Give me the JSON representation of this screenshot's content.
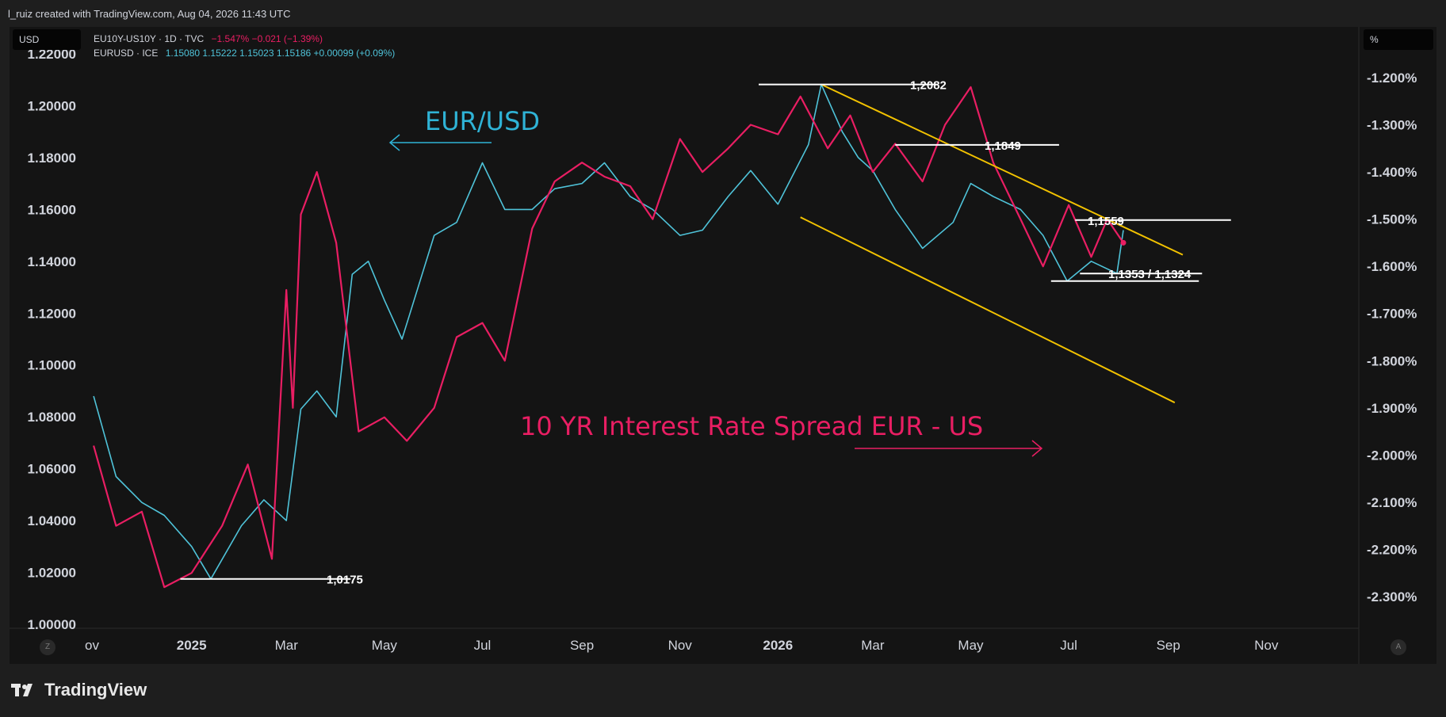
{
  "header": {
    "credit": "l_ruiz created with TradingView.com, Aug 04, 2026 11:43 UTC"
  },
  "left_axis_unit": "USD",
  "right_axis_unit": "%",
  "legend": {
    "spread": {
      "symbol": "EU10Y-US10Y · 1D · TVC",
      "values": "−1.547%  −0.021 (−1.39%)",
      "color": "#e91e63"
    },
    "eurusd": {
      "symbol": "EURUSD · ICE",
      "values": "1.15080  1.15222  1.15023  1.15186  +0.00099 (+0.09%)",
      "color": "#4fc3d9"
    }
  },
  "annotations": {
    "eurusd_label": "EUR/USD",
    "spread_label": "10 YR Interest Rate Spread EUR - US",
    "levels": [
      {
        "text": "1,2082",
        "value": 1.2082
      },
      {
        "text": "1,1849",
        "value": 1.1849
      },
      {
        "text": "1,1559",
        "value": 1.1559
      },
      {
        "text": "1,1353 / 1,1324",
        "value": 1.1353
      },
      {
        "text": "1,0175",
        "value": 1.0175
      }
    ]
  },
  "corner_buttons": {
    "left": "Z",
    "right": "A"
  },
  "footer": {
    "brand": "TradingView"
  },
  "chart_data": {
    "type": "line",
    "x_axis": {
      "ticks": [
        "ov",
        "2025",
        "Mar",
        "May",
        "Jul",
        "Sep",
        "Nov",
        "2026",
        "Mar",
        "May",
        "Jul",
        "Sep",
        "Nov"
      ],
      "bold": [
        "2025",
        "2026"
      ]
    },
    "left_axis": {
      "ylim": [
        1.0,
        1.22
      ],
      "ticks": [
        "1.00000",
        "1.02000",
        "1.04000",
        "1.06000",
        "1.08000",
        "1.10000",
        "1.12000",
        "1.14000",
        "1.16000",
        "1.18000",
        "1.20000",
        "1.22000"
      ]
    },
    "right_axis": {
      "ylim": [
        -2.3,
        -1.2
      ],
      "ticks": [
        "-1.200%",
        "-1.300%",
        "-1.400%",
        "-1.500%",
        "-1.600%",
        "-1.700%",
        "-1.800%",
        "-1.900%",
        "-2.000%",
        "-2.100%",
        "-2.200%",
        "-2.300%"
      ]
    },
    "series": [
      {
        "name": "EURUSD · ICE",
        "axis": "left",
        "color": "#4fc3d9",
        "x": [
          "2024-11-01",
          "2024-11-15",
          "2024-12-01",
          "2024-12-15",
          "2025-01-01",
          "2025-01-13",
          "2025-02-01",
          "2025-02-15",
          "2025-03-01",
          "2025-03-10",
          "2025-03-20",
          "2025-04-01",
          "2025-04-11",
          "2025-04-21",
          "2025-05-01",
          "2025-05-12",
          "2025-06-01",
          "2025-06-15",
          "2025-07-01",
          "2025-07-15",
          "2025-08-01",
          "2025-08-15",
          "2025-09-01",
          "2025-09-15",
          "2025-10-01",
          "2025-10-15",
          "2025-11-01",
          "2025-11-15",
          "2025-12-01",
          "2025-12-15",
          "2026-01-01",
          "2026-01-20",
          "2026-01-28",
          "2026-02-10",
          "2026-02-20",
          "2026-03-01",
          "2026-03-15",
          "2026-04-01",
          "2026-04-20",
          "2026-05-01",
          "2026-05-15",
          "2026-06-01",
          "2026-06-15",
          "2026-06-30",
          "2026-07-15",
          "2026-07-31",
          "2026-08-04"
        ],
        "values": [
          1.088,
          1.057,
          1.047,
          1.042,
          1.03,
          1.0175,
          1.038,
          1.048,
          1.04,
          1.083,
          1.09,
          1.08,
          1.135,
          1.14,
          1.125,
          1.11,
          1.15,
          1.155,
          1.178,
          1.16,
          1.16,
          1.168,
          1.17,
          1.178,
          1.165,
          1.16,
          1.15,
          1.152,
          1.165,
          1.175,
          1.162,
          1.185,
          1.2082,
          1.19,
          1.18,
          1.175,
          1.16,
          1.145,
          1.155,
          1.17,
          1.165,
          1.16,
          1.15,
          1.1324,
          1.14,
          1.1353,
          1.152
        ]
      },
      {
        "name": "EU10Y-US10Y · 1D · TVC",
        "axis": "right",
        "color": "#e91e63",
        "x": [
          "2024-11-01",
          "2024-11-15",
          "2024-12-01",
          "2024-12-15",
          "2025-01-01",
          "2025-01-20",
          "2025-02-05",
          "2025-02-20",
          "2025-03-01",
          "2025-03-05",
          "2025-03-10",
          "2025-03-20",
          "2025-04-01",
          "2025-04-15",
          "2025-05-01",
          "2025-05-15",
          "2025-06-01",
          "2025-06-15",
          "2025-07-01",
          "2025-07-15",
          "2025-08-01",
          "2025-08-15",
          "2025-09-01",
          "2025-09-15",
          "2025-10-01",
          "2025-10-15",
          "2025-11-01",
          "2025-11-15",
          "2025-12-01",
          "2025-12-15",
          "2026-01-01",
          "2026-01-15",
          "2026-02-01",
          "2026-02-15",
          "2026-03-01",
          "2026-03-15",
          "2026-04-01",
          "2026-04-15",
          "2026-05-01",
          "2026-05-15",
          "2026-06-01",
          "2026-06-15",
          "2026-07-01",
          "2026-07-15",
          "2026-07-25",
          "2026-08-04"
        ],
        "values": [
          -1.98,
          -2.15,
          -2.12,
          -2.28,
          -2.25,
          -2.15,
          -2.02,
          -2.22,
          -1.65,
          -1.9,
          -1.49,
          -1.4,
          -1.55,
          -1.95,
          -1.92,
          -1.97,
          -1.9,
          -1.75,
          -1.72,
          -1.8,
          -1.52,
          -1.42,
          -1.38,
          -1.41,
          -1.43,
          -1.5,
          -1.33,
          -1.4,
          -1.35,
          -1.3,
          -1.32,
          -1.24,
          -1.35,
          -1.28,
          -1.4,
          -1.34,
          -1.42,
          -1.3,
          -1.22,
          -1.38,
          -1.5,
          -1.6,
          -1.47,
          -1.58,
          -1.5,
          -1.55
        ]
      }
    ],
    "trendlines": [
      {
        "from": [
          "2026-01-28",
          1.2082
        ],
        "to": [
          "2026-09-10",
          1.1425
        ]
      },
      {
        "from": [
          "2026-01-15",
          1.157
        ],
        "to": [
          "2026-09-05",
          1.0855
        ]
      }
    ]
  }
}
